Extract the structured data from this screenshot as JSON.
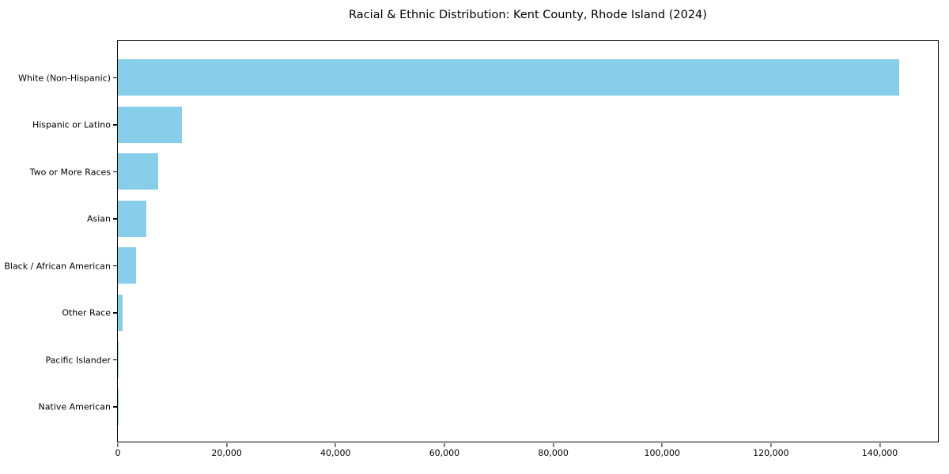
{
  "title": "Racial & Ethnic Distribution: Kent County, Rhode Island (2024)",
  "colors": {
    "bar": "#87CEEB",
    "axis": "#000000",
    "background": "#ffffff",
    "text": "#000000"
  },
  "chart_data": {
    "type": "bar",
    "orientation": "horizontal",
    "title": "Racial & Ethnic Distribution: Kent County, Rhode Island (2024)",
    "categories": [
      "White (Non-Hispanic)",
      "Hispanic or Latino",
      "Two or More Races",
      "Asian",
      "Black / African American",
      "Other Race",
      "Pacific Islander",
      "Native American"
    ],
    "values": [
      143500,
      11800,
      7400,
      5200,
      3300,
      850,
      80,
      50
    ],
    "xlabel": "",
    "ylabel": "",
    "xlim": [
      0,
      150675
    ],
    "xticks": [
      0,
      20000,
      40000,
      60000,
      80000,
      100000,
      120000,
      140000
    ],
    "xtick_labels": [
      "0",
      "20,000",
      "40,000",
      "60,000",
      "80,000",
      "100,000",
      "120,000",
      "140,000"
    ],
    "bar_color": "#87CEEB",
    "grid": false,
    "legend": null,
    "sort": "descending"
  }
}
